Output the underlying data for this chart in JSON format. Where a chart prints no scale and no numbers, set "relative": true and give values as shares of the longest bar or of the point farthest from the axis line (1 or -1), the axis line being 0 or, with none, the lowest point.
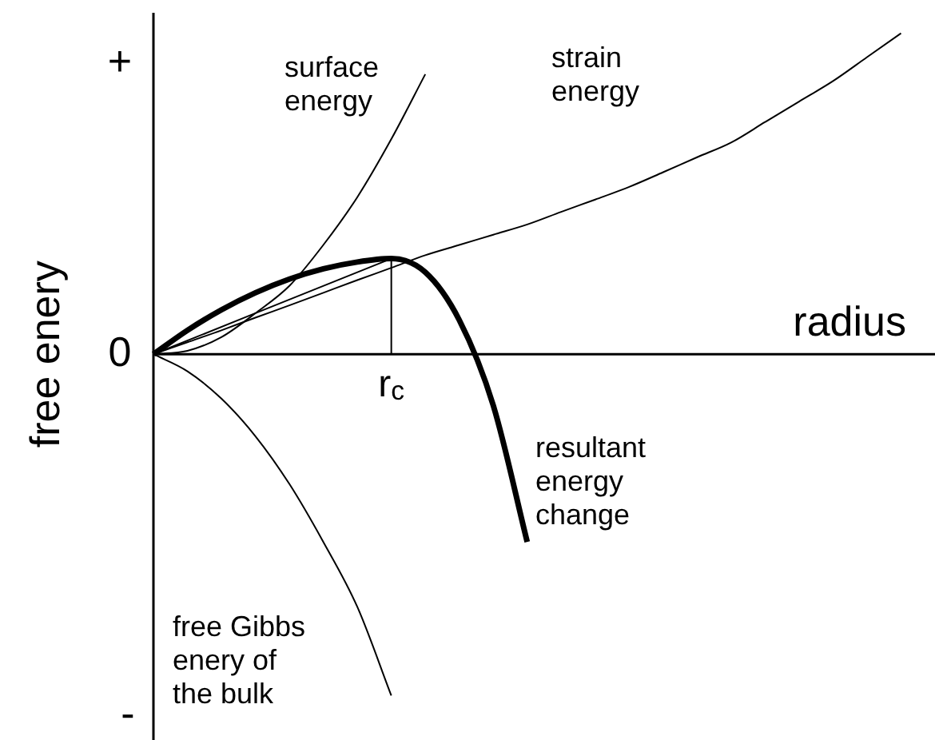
{
  "chart_data": {
    "type": "line",
    "relative": true,
    "xlabel": "radius",
    "ylabel": "free enery",
    "grid": false,
    "legend": false,
    "marker": "none",
    "line_style": "solid",
    "categories": [
      null,
      null,
      null,
      null,
      null,
      null,
      null,
      null,
      null,
      null,
      null,
      null,
      null,
      null,
      null,
      null,
      null,
      null,
      null,
      null,
      null,
      null,
      null,
      null
    ],
    "series": [
      {
        "name": "surface energy",
        "color": "#000000",
        "values": [
          0,
          0.01,
          0.05,
          0.12,
          0.2,
          0.32,
          0.46,
          0.63,
          0.82,
          null,
          null,
          null,
          null,
          null,
          null,
          null,
          null,
          null,
          null,
          null,
          null,
          null,
          null,
          null
        ]
      },
      {
        "name": "strain energy",
        "color": "#000000",
        "values": [
          0,
          0.035,
          0.07,
          0.107,
          0.143,
          0.18,
          0.217,
          0.253,
          0.29,
          0.32,
          0.35,
          0.38,
          0.417,
          0.453,
          0.49,
          0.533,
          0.577,
          0.62,
          0.68,
          0.74,
          0.8,
          0.87,
          0.94,
          null
        ]
      },
      {
        "name": "free Gibbs enery of the bulk",
        "color": "#000000",
        "values": [
          0,
          -0.05,
          -0.13,
          -0.24,
          -0.38,
          -0.55,
          -0.74,
          -1.0,
          null,
          null,
          null,
          null,
          null,
          null,
          null,
          null,
          null,
          null,
          null,
          null,
          null,
          null,
          null,
          null
        ]
      },
      {
        "name": "resultant energy change",
        "color": "#000000",
        "values": [
          0,
          0.07,
          0.13,
          0.18,
          0.22,
          0.25,
          0.27,
          0.28,
          0.24,
          0.1,
          -0.15,
          -0.55,
          null,
          null,
          null,
          null,
          null,
          null,
          null,
          null,
          null,
          null,
          null,
          null
        ]
      },
      {
        "color": "#000000",
        "values": [
          0,
          null,
          null,
          null,
          null,
          null,
          null,
          0.28,
          null,
          null,
          null,
          null,
          null,
          null,
          null,
          null,
          null,
          null,
          null,
          null,
          null,
          null,
          null,
          null
        ]
      }
    ],
    "annotations": [
      "+",
      "0",
      "-",
      "r$_{c}$"
    ]
  }
}
